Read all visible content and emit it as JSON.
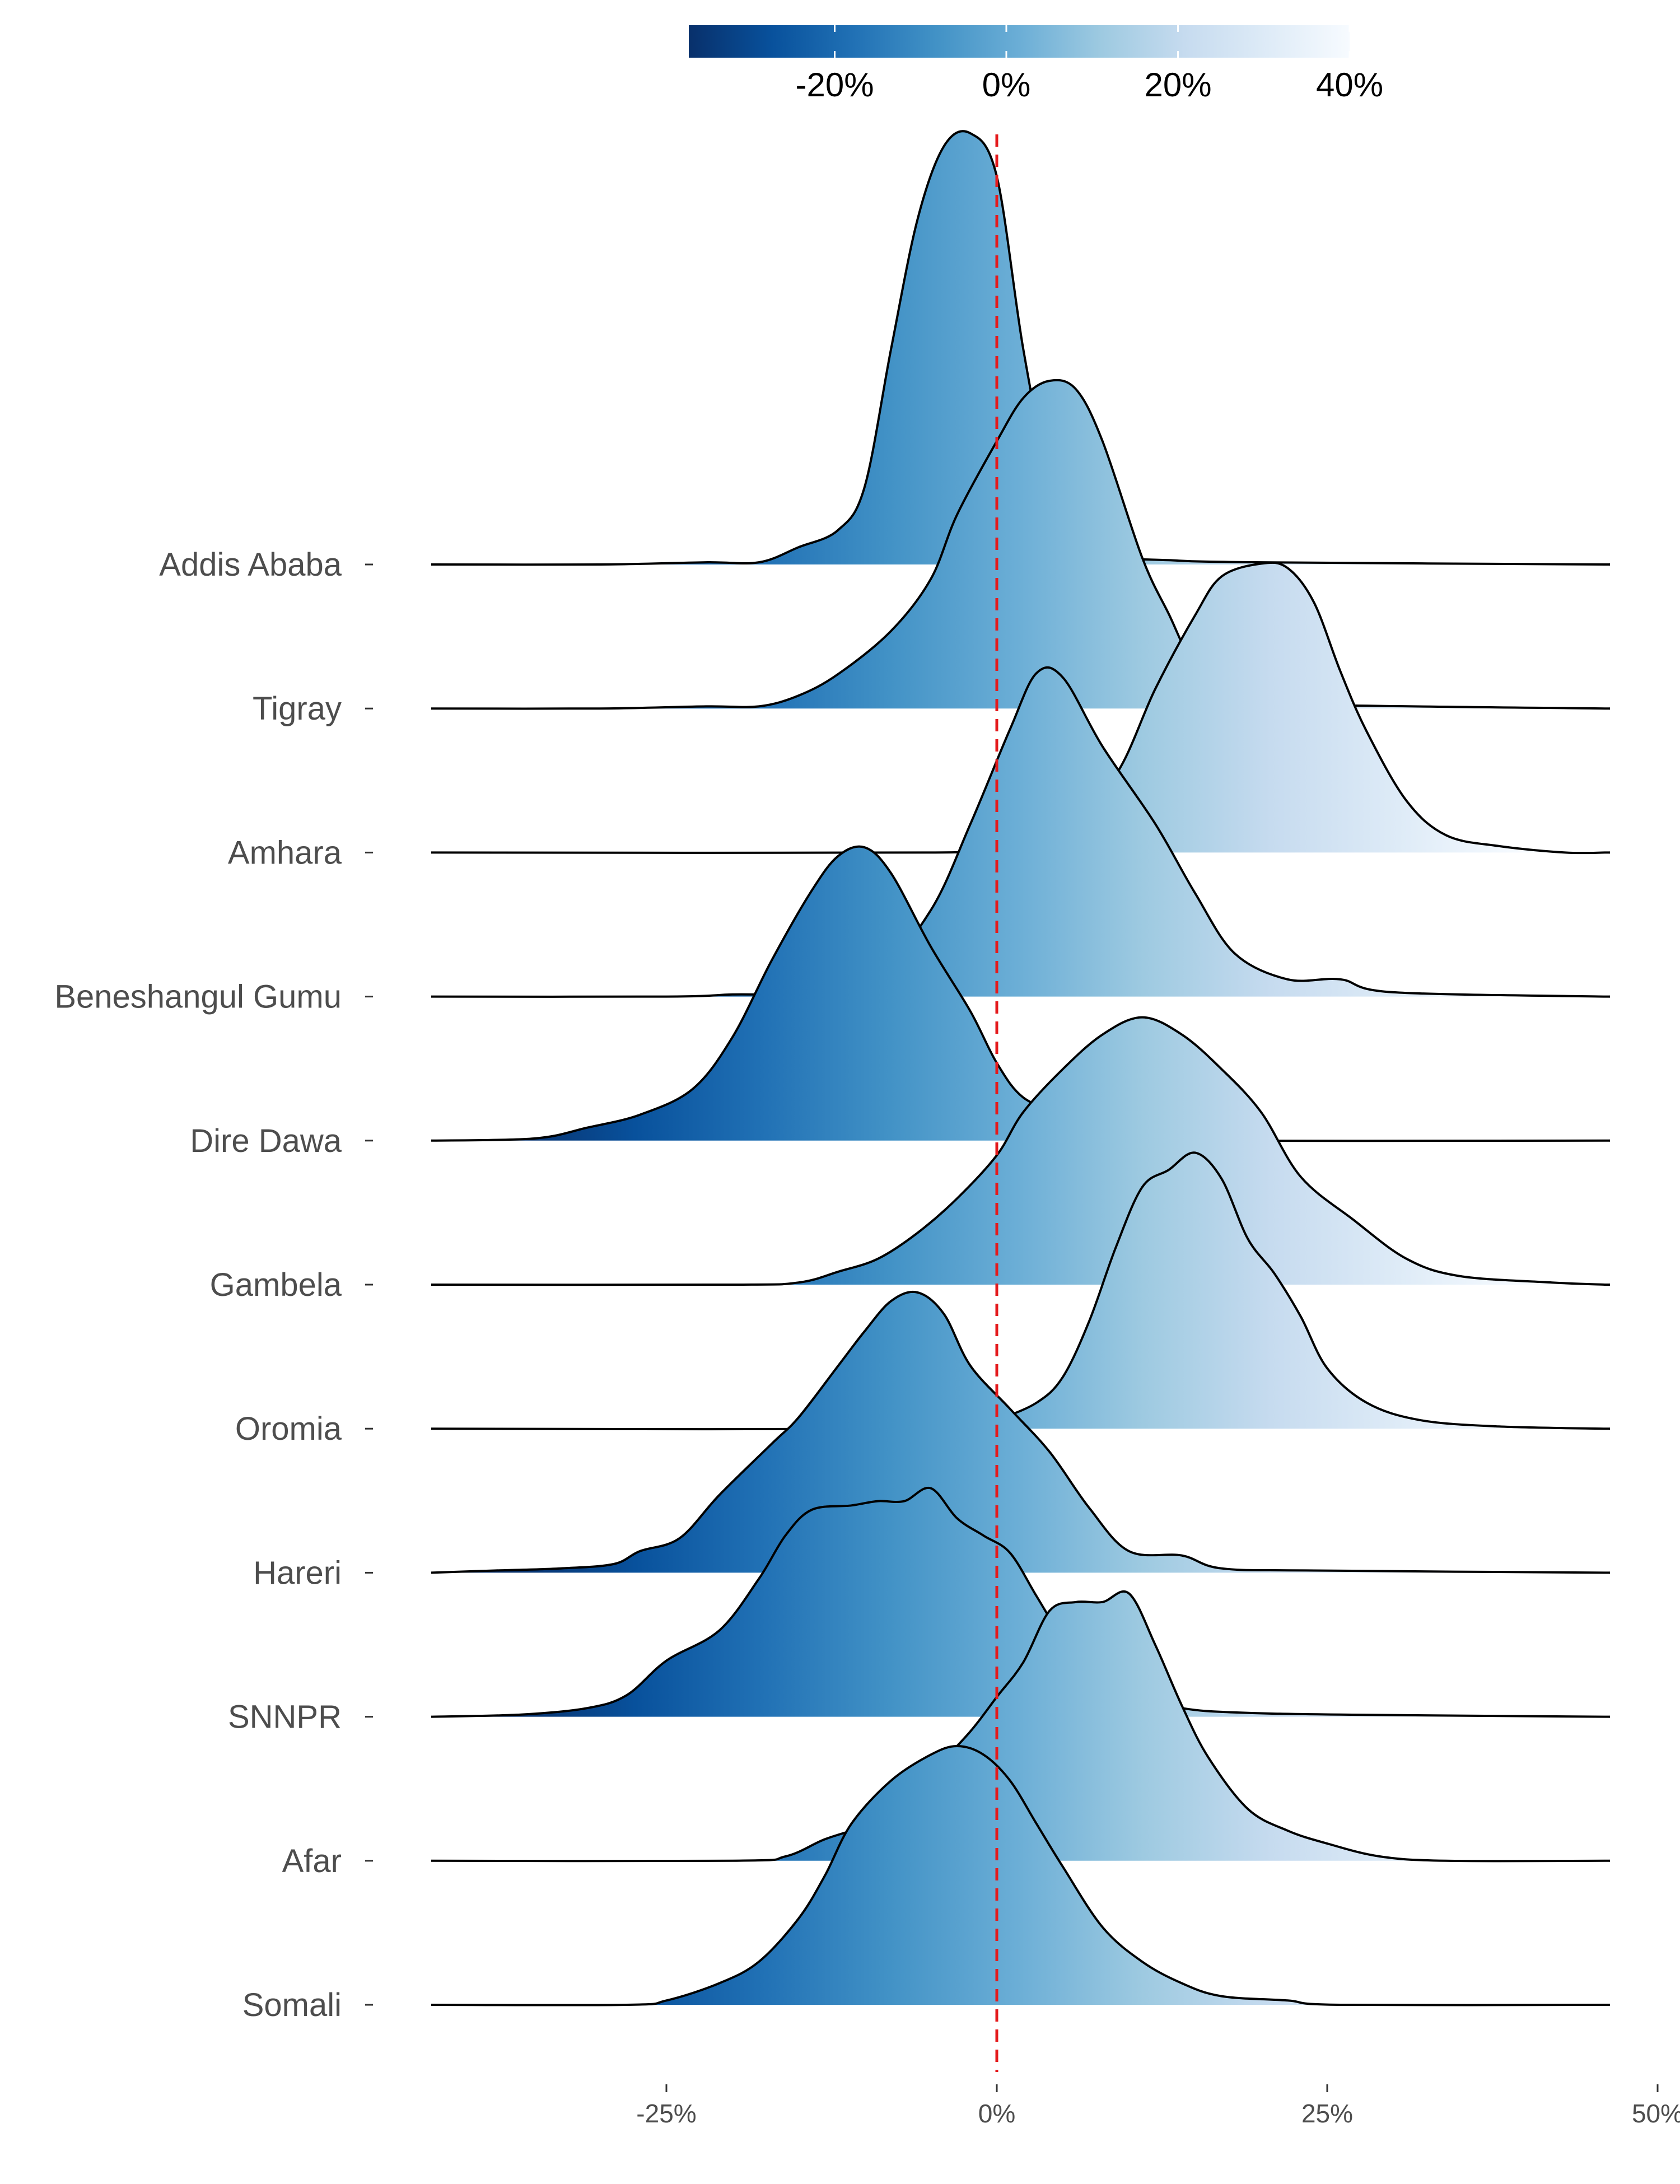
{
  "chart_data": {
    "type": "ridgeline",
    "title": "",
    "xlabel": "",
    "ylabel": "",
    "x_range": [
      -43,
      46
    ],
    "x_ticks": [
      {
        "value": -25,
        "label": "-25%"
      },
      {
        "value": 0,
        "label": "0%"
      },
      {
        "value": 25,
        "label": "25%"
      },
      {
        "value": 50,
        "label": "50%"
      }
    ],
    "reference_line": {
      "value": 0,
      "color": "#e41a1c",
      "style": "dashed"
    },
    "legend": {
      "type": "colorbar",
      "placement": "top",
      "range": [
        -37,
        40
      ],
      "ticks": [
        {
          "value": -20,
          "label": "-20%"
        },
        {
          "value": 0,
          "label": "0%"
        },
        {
          "value": 20,
          "label": "20%"
        },
        {
          "value": 40,
          "label": "40%"
        }
      ],
      "colors": [
        "#08306b",
        "#08519c",
        "#2171b5",
        "#4292c6",
        "#6baed6",
        "#9ecae1",
        "#c6dbef",
        "#deebf7",
        "#f7fbff"
      ]
    },
    "series": [
      {
        "name": "Addis Ababa",
        "points": [
          [
            -43,
            0
          ],
          [
            -30,
            0
          ],
          [
            -22,
            0.005
          ],
          [
            -18,
            0.005
          ],
          [
            -15,
            0.04
          ],
          [
            -12,
            0.08
          ],
          [
            -10,
            0.18
          ],
          [
            -8,
            0.5
          ],
          [
            -6,
            0.8
          ],
          [
            -4,
            0.97
          ],
          [
            -2,
            1.0
          ],
          [
            0,
            0.9
          ],
          [
            2,
            0.5
          ],
          [
            4,
            0.2
          ],
          [
            6,
            0.07
          ],
          [
            9,
            0.02
          ],
          [
            13,
            0.01
          ],
          [
            20,
            0.005
          ],
          [
            46,
            0
          ]
        ]
      },
      {
        "name": "Tigray",
        "points": [
          [
            -43,
            0
          ],
          [
            -30,
            0
          ],
          [
            -22,
            0.005
          ],
          [
            -18,
            0.005
          ],
          [
            -15,
            0.03
          ],
          [
            -12,
            0.08
          ],
          [
            -8,
            0.18
          ],
          [
            -5,
            0.3
          ],
          [
            -3,
            0.45
          ],
          [
            0,
            0.62
          ],
          [
            2,
            0.72
          ],
          [
            4,
            0.76
          ],
          [
            6,
            0.74
          ],
          [
            8,
            0.62
          ],
          [
            11,
            0.35
          ],
          [
            13,
            0.22
          ],
          [
            15,
            0.1
          ],
          [
            18,
            0.03
          ],
          [
            22,
            0.01
          ],
          [
            46,
            0
          ]
        ]
      },
      {
        "name": "Amhara",
        "points": [
          [
            -43,
            0
          ],
          [
            -5,
            0
          ],
          [
            -2,
            0.01
          ],
          [
            2,
            0.04
          ],
          [
            5,
            0.06
          ],
          [
            9,
            0.18
          ],
          [
            12,
            0.38
          ],
          [
            15,
            0.55
          ],
          [
            17,
            0.64
          ],
          [
            20,
            0.67
          ],
          [
            22,
            0.66
          ],
          [
            24,
            0.58
          ],
          [
            26,
            0.42
          ],
          [
            28,
            0.28
          ],
          [
            31,
            0.12
          ],
          [
            34,
            0.04
          ],
          [
            38,
            0.015
          ],
          [
            43,
            0
          ],
          [
            46,
            0
          ]
        ]
      },
      {
        "name": "Beneshangul Gumu",
        "points": [
          [
            -43,
            0
          ],
          [
            -25,
            0
          ],
          [
            -20,
            0.005
          ],
          [
            -15,
            0.01
          ],
          [
            -9,
            0.06
          ],
          [
            -5,
            0.2
          ],
          [
            -2,
            0.4
          ],
          [
            1,
            0.62
          ],
          [
            3,
            0.75
          ],
          [
            5,
            0.74
          ],
          [
            8,
            0.58
          ],
          [
            12,
            0.4
          ],
          [
            15,
            0.24
          ],
          [
            18,
            0.1
          ],
          [
            22,
            0.04
          ],
          [
            26,
            0.04
          ],
          [
            30,
            0.01
          ],
          [
            46,
            0
          ]
        ]
      },
      {
        "name": "Dire Dawa",
        "points": [
          [
            -43,
            0
          ],
          [
            -35,
            0.005
          ],
          [
            -31,
            0.03
          ],
          [
            -27,
            0.06
          ],
          [
            -23,
            0.12
          ],
          [
            -20,
            0.24
          ],
          [
            -17,
            0.42
          ],
          [
            -14,
            0.58
          ],
          [
            -12,
            0.66
          ],
          [
            -10,
            0.68
          ],
          [
            -8,
            0.62
          ],
          [
            -5,
            0.45
          ],
          [
            -2,
            0.3
          ],
          [
            0,
            0.18
          ],
          [
            2,
            0.1
          ],
          [
            5,
            0.06
          ],
          [
            8,
            0.01
          ],
          [
            10,
            0
          ],
          [
            46,
            0
          ]
        ]
      },
      {
        "name": "Gambela",
        "points": [
          [
            -43,
            0
          ],
          [
            -20,
            0
          ],
          [
            -15,
            0.005
          ],
          [
            -12,
            0.03
          ],
          [
            -9,
            0.06
          ],
          [
            -6,
            0.12
          ],
          [
            -3,
            0.2
          ],
          [
            0,
            0.3
          ],
          [
            2,
            0.4
          ],
          [
            5,
            0.5
          ],
          [
            8,
            0.58
          ],
          [
            11,
            0.62
          ],
          [
            14,
            0.58
          ],
          [
            17,
            0.5
          ],
          [
            20,
            0.4
          ],
          [
            23,
            0.25
          ],
          [
            27,
            0.15
          ],
          [
            31,
            0.06
          ],
          [
            35,
            0.02
          ],
          [
            42,
            0.005
          ],
          [
            46,
            0
          ]
        ]
      },
      {
        "name": "Oromia",
        "points": [
          [
            -43,
            0
          ],
          [
            -2,
            0
          ],
          [
            0,
            0.02
          ],
          [
            3,
            0.06
          ],
          [
            5,
            0.12
          ],
          [
            7,
            0.25
          ],
          [
            9,
            0.42
          ],
          [
            11,
            0.56
          ],
          [
            13,
            0.6
          ],
          [
            15,
            0.64
          ],
          [
            17,
            0.58
          ],
          [
            19,
            0.44
          ],
          [
            21,
            0.36
          ],
          [
            23,
            0.26
          ],
          [
            25,
            0.14
          ],
          [
            28,
            0.06
          ],
          [
            32,
            0.02
          ],
          [
            38,
            0.005
          ],
          [
            46,
            0
          ]
        ]
      },
      {
        "name": "Hareri",
        "points": [
          [
            -43,
            0
          ],
          [
            -38,
            0.005
          ],
          [
            -33,
            0.01
          ],
          [
            -29,
            0.02
          ],
          [
            -27,
            0.05
          ],
          [
            -24,
            0.08
          ],
          [
            -21,
            0.18
          ],
          [
            -17,
            0.3
          ],
          [
            -15,
            0.36
          ],
          [
            -12,
            0.48
          ],
          [
            -10,
            0.56
          ],
          [
            -8,
            0.63
          ],
          [
            -6,
            0.65
          ],
          [
            -4,
            0.6
          ],
          [
            -2,
            0.48
          ],
          [
            1,
            0.38
          ],
          [
            4,
            0.28
          ],
          [
            7,
            0.15
          ],
          [
            10,
            0.05
          ],
          [
            14,
            0.04
          ],
          [
            17,
            0.01
          ],
          [
            24,
            0.005
          ],
          [
            46,
            0
          ]
        ]
      },
      {
        "name": "SNNPR",
        "points": [
          [
            -43,
            0
          ],
          [
            -36,
            0.005
          ],
          [
            -31,
            0.02
          ],
          [
            -28,
            0.05
          ],
          [
            -25,
            0.13
          ],
          [
            -21,
            0.2
          ],
          [
            -18,
            0.32
          ],
          [
            -16,
            0.42
          ],
          [
            -14,
            0.48
          ],
          [
            -11,
            0.49
          ],
          [
            -9,
            0.5
          ],
          [
            -7,
            0.5
          ],
          [
            -5,
            0.53
          ],
          [
            -3,
            0.46
          ],
          [
            -1,
            0.42
          ],
          [
            1,
            0.38
          ],
          [
            3,
            0.28
          ],
          [
            5,
            0.18
          ],
          [
            7,
            0.1
          ],
          [
            10,
            0.05
          ],
          [
            14,
            0.02
          ],
          [
            18,
            0.01
          ],
          [
            26,
            0.005
          ],
          [
            46,
            0
          ]
        ]
      },
      {
        "name": "Afar",
        "points": [
          [
            -43,
            0
          ],
          [
            -20,
            0
          ],
          [
            -16,
            0.01
          ],
          [
            -13,
            0.05
          ],
          [
            -10,
            0.08
          ],
          [
            -7,
            0.12
          ],
          [
            -5,
            0.2
          ],
          [
            -2,
            0.3
          ],
          [
            0,
            0.38
          ],
          [
            2,
            0.46
          ],
          [
            4,
            0.58
          ],
          [
            6,
            0.6
          ],
          [
            8,
            0.6
          ],
          [
            10,
            0.62
          ],
          [
            12,
            0.5
          ],
          [
            14,
            0.36
          ],
          [
            16,
            0.24
          ],
          [
            19,
            0.12
          ],
          [
            22,
            0.07
          ],
          [
            25,
            0.04
          ],
          [
            29,
            0.01
          ],
          [
            34,
            0
          ],
          [
            46,
            0
          ]
        ]
      },
      {
        "name": "Somali",
        "points": [
          [
            -43,
            0
          ],
          [
            -28,
            0
          ],
          [
            -25,
            0.01
          ],
          [
            -21,
            0.05
          ],
          [
            -18,
            0.1
          ],
          [
            -15,
            0.2
          ],
          [
            -13,
            0.3
          ],
          [
            -11,
            0.42
          ],
          [
            -8,
            0.52
          ],
          [
            -5,
            0.58
          ],
          [
            -3,
            0.6
          ],
          [
            -1,
            0.58
          ],
          [
            1,
            0.52
          ],
          [
            3,
            0.42
          ],
          [
            5,
            0.32
          ],
          [
            8,
            0.18
          ],
          [
            11,
            0.1
          ],
          [
            14,
            0.05
          ],
          [
            17,
            0.02
          ],
          [
            22,
            0.01
          ],
          [
            26,
            0
          ],
          [
            46,
            0
          ]
        ]
      }
    ]
  }
}
